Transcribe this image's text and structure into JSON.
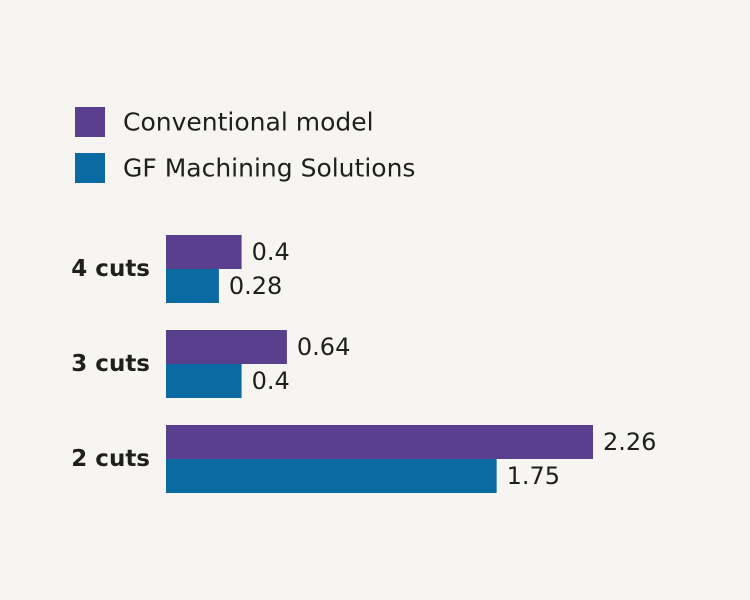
{
  "chart_data": {
    "type": "bar",
    "orientation": "horizontal",
    "categories": [
      "4 cuts",
      "3 cuts",
      "2 cuts"
    ],
    "series": [
      {
        "name": "Conventional model",
        "color": "#5b3f8f",
        "values": [
          0.4,
          0.64,
          2.26
        ],
        "value_labels": [
          "0.4",
          "0.64",
          "2.26"
        ]
      },
      {
        "name": "GF Machining Solutions",
        "color": "#0a6aa1",
        "values": [
          0.28,
          0.4,
          1.75
        ],
        "value_labels": [
          "0.28",
          "0.4",
          "1.75"
        ]
      }
    ],
    "title": "",
    "xlabel": "",
    "ylabel": "",
    "xlim": [
      0,
      2.26
    ],
    "grid": false,
    "legend": "top-left"
  }
}
